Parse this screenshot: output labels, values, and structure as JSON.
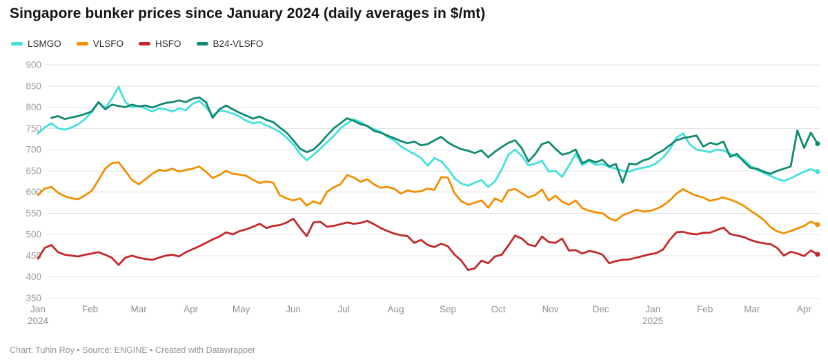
{
  "page": {
    "title": "Singapore bunker prices since January 2024 (daily averages in $/mt)",
    "footer": "Chart: Tuhin Roy • Source: ENGINE • Created with Datawrapper"
  },
  "chart_data": {
    "type": "line",
    "title": "Singapore bunker prices since January 2024 (daily averages in $/mt)",
    "xlabel": "",
    "ylabel": "",
    "unit": "$/mt",
    "grid": true,
    "legend_position": "top-left",
    "ylim": [
      350,
      900
    ],
    "y_ticks": [
      350,
      400,
      450,
      500,
      550,
      600,
      650,
      700,
      750,
      800,
      850,
      900
    ],
    "x_axis_note": "daily time axis, Jan 2024 to Apr 2025; x_days are day offsets from 2024-01-01",
    "x_ticks": [
      {
        "label": "Jan",
        "year": "2024",
        "day": 0
      },
      {
        "label": "Feb",
        "day": 31
      },
      {
        "label": "Mar",
        "day": 60
      },
      {
        "label": "Apr",
        "day": 91
      },
      {
        "label": "May",
        "day": 121
      },
      {
        "label": "Jun",
        "day": 152
      },
      {
        "label": "Jul",
        "day": 182
      },
      {
        "label": "Aug",
        "day": 213
      },
      {
        "label": "Sep",
        "day": 244
      },
      {
        "label": "Oct",
        "day": 274
      },
      {
        "label": "Nov",
        "day": 305
      },
      {
        "label": "Dec",
        "day": 335
      },
      {
        "label": "Jan",
        "year": "2025",
        "day": 366
      },
      {
        "label": "Feb",
        "day": 397
      },
      {
        "label": "Mar",
        "day": 425
      },
      {
        "label": "Apr",
        "day": 456
      }
    ],
    "x_days": [
      0,
      4,
      8,
      12,
      16,
      20,
      24,
      28,
      32,
      36,
      40,
      44,
      48,
      52,
      56,
      60,
      64,
      68,
      72,
      76,
      80,
      84,
      88,
      92,
      96,
      100,
      104,
      108,
      112,
      116,
      120,
      124,
      128,
      132,
      136,
      140,
      144,
      148,
      152,
      156,
      160,
      164,
      168,
      172,
      176,
      180,
      184,
      188,
      192,
      196,
      200,
      204,
      208,
      212,
      216,
      220,
      224,
      228,
      232,
      236,
      240,
      244,
      248,
      252,
      256,
      260,
      264,
      268,
      272,
      276,
      280,
      284,
      288,
      292,
      296,
      300,
      304,
      308,
      312,
      316,
      320,
      324,
      328,
      332,
      336,
      340,
      344,
      348,
      352,
      356,
      360,
      364,
      368,
      372,
      376,
      380,
      384,
      388,
      392,
      396,
      400,
      404,
      408,
      412,
      416,
      420,
      424,
      428,
      432,
      436,
      440,
      444,
      448,
      452,
      456,
      460,
      464
    ],
    "series": [
      {
        "name": "LSMGO",
        "color": "#45e0dc",
        "values": [
          738,
          752,
          762,
          750,
          747,
          752,
          760,
          772,
          788,
          812,
          798,
          820,
          848,
          812,
          800,
          803,
          797,
          790,
          797,
          795,
          790,
          797,
          793,
          808,
          815,
          800,
          780,
          792,
          790,
          785,
          778,
          768,
          762,
          765,
          757,
          750,
          742,
          728,
          712,
          690,
          675,
          688,
          702,
          717,
          732,
          750,
          762,
          771,
          765,
          755,
          748,
          742,
          730,
          722,
          708,
          698,
          690,
          680,
          662,
          680,
          672,
          655,
          632,
          620,
          615,
          622,
          628,
          612,
          625,
          653,
          688,
          700,
          685,
          663,
          667,
          674,
          648,
          650,
          636,
          662,
          690,
          663,
          673,
          664,
          666,
          659,
          655,
          650,
          648,
          654,
          657,
          660,
          668,
          681,
          700,
          728,
          738,
          712,
          700,
          697,
          694,
          700,
          698,
          690,
          684,
          677,
          662,
          652,
          645,
          638,
          631,
          626,
          632,
          640,
          648,
          654,
          648
        ]
      },
      {
        "name": "VLSFO",
        "color": "#f18f01",
        "values": [
          593,
          608,
          612,
          598,
          590,
          585,
          583,
          592,
          603,
          628,
          655,
          668,
          670,
          650,
          628,
          618,
          630,
          643,
          652,
          650,
          655,
          648,
          652,
          655,
          660,
          648,
          633,
          640,
          650,
          643,
          641,
          638,
          629,
          621,
          625,
          622,
          592,
          585,
          580,
          585,
          568,
          578,
          572,
          600,
          611,
          618,
          640,
          634,
          624,
          630,
          618,
          610,
          612,
          608,
          596,
          604,
          600,
          602,
          608,
          605,
          635,
          634,
          597,
          578,
          570,
          575,
          580,
          563,
          585,
          577,
          604,
          607,
          597,
          587,
          593,
          606,
          580,
          591,
          577,
          570,
          580,
          562,
          556,
          552,
          550,
          538,
          532,
          545,
          551,
          558,
          554,
          555,
          560,
          568,
          580,
          596,
          607,
          598,
          591,
          587,
          579,
          583,
          587,
          582,
          576,
          568,
          556,
          546,
          534,
          517,
          507,
          503,
          508,
          514,
          520,
          530,
          523
        ]
      },
      {
        "name": "HSFO",
        "color": "#c2282a",
        "values": [
          443,
          468,
          475,
          458,
          452,
          450,
          448,
          452,
          455,
          458,
          452,
          445,
          428,
          445,
          450,
          445,
          442,
          440,
          445,
          450,
          452,
          448,
          458,
          465,
          472,
          480,
          488,
          495,
          505,
          500,
          508,
          512,
          518,
          525,
          515,
          520,
          522,
          528,
          537,
          515,
          496,
          528,
          530,
          518,
          520,
          524,
          528,
          525,
          527,
          532,
          524,
          515,
          508,
          502,
          498,
          496,
          480,
          487,
          475,
          470,
          478,
          472,
          452,
          438,
          416,
          420,
          438,
          432,
          448,
          452,
          474,
          497,
          490,
          476,
          472,
          495,
          482,
          480,
          490,
          462,
          463,
          455,
          461,
          458,
          452,
          432,
          437,
          440,
          441,
          445,
          449,
          453,
          456,
          464,
          487,
          505,
          506,
          502,
          500,
          504,
          504,
          510,
          516,
          501,
          497,
          494,
          487,
          482,
          479,
          477,
          468,
          450,
          459,
          455,
          449,
          462,
          453
        ]
      },
      {
        "name": "B24-VLSFO",
        "color": "#0f8a70",
        "values": [
          null,
          null,
          775,
          779,
          772,
          776,
          779,
          784,
          790,
          812,
          795,
          806,
          803,
          800,
          806,
          802,
          804,
          799,
          805,
          810,
          812,
          816,
          812,
          820,
          823,
          812,
          775,
          795,
          804,
          795,
          787,
          780,
          773,
          778,
          770,
          765,
          752,
          740,
          722,
          702,
          694,
          700,
          715,
          733,
          750,
          762,
          774,
          768,
          760,
          756,
          744,
          740,
          733,
          727,
          720,
          715,
          719,
          710,
          713,
          722,
          730,
          717,
          708,
          701,
          697,
          692,
          698,
          682,
          695,
          706,
          716,
          722,
          703,
          672,
          690,
          713,
          718,
          702,
          688,
          692,
          700,
          668,
          676,
          670,
          676,
          660,
          666,
          622,
          667,
          665,
          674,
          679,
          690,
          698,
          710,
          722,
          727,
          730,
          733,
          707,
          716,
          712,
          719,
          683,
          690,
          672,
          657,
          655,
          648,
          643,
          650,
          655,
          660,
          745,
          704,
          740,
          714
        ]
      }
    ]
  }
}
